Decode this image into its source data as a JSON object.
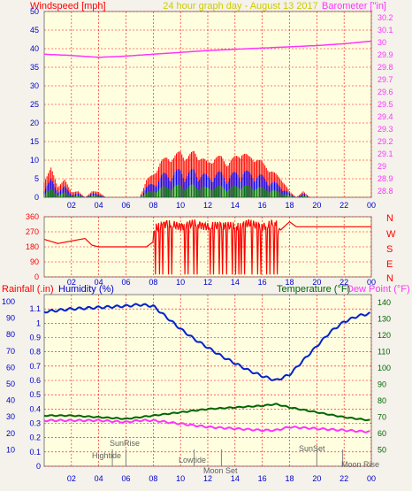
{
  "header": {
    "left_title": "Windspeed [mph]",
    "center_title": "24 hour graph day - August 13 2017",
    "right_title": "Barometer [\"in]"
  },
  "wind_dir": {
    "compass": [
      "N",
      "W",
      "S",
      "E",
      "N"
    ]
  },
  "bottom_header": {
    "rain": "Rainfall (.in)",
    "humidity": "Humidity (%)",
    "temperature": "Temperature (°F)",
    "dewpoint": "Dew Point (°F)"
  },
  "events": {
    "hightide": "Hightide",
    "sunrise": "SunRise",
    "lowtide": "Lowtide",
    "moonset": "Moon Set",
    "sunset": "SunSet",
    "moonrise": "Moon Rise"
  },
  "colors": {
    "background": "#f4f2ea",
    "plot_bg": "#ffffe0",
    "grid": "#ff0000",
    "barometer": "#ff33ff",
    "wind_gust": "#ff0000",
    "wind_avg": "#0000ff",
    "wind_low": "#008000",
    "direction": "#ff0000",
    "humidity": "#0022cc",
    "temperature": "#006600",
    "dewpoint": "#ff33ff",
    "title": "#cccc00"
  },
  "chart_data": [
    {
      "type": "line",
      "title": "24 hour graph day - August 13 2017",
      "x_ticks": [
        "02",
        "04",
        "06",
        "08",
        "10",
        "12",
        "14",
        "16",
        "18",
        "20",
        "22",
        "00"
      ],
      "y_left_ticks": [
        0,
        5,
        10,
        15,
        20,
        25,
        30,
        35,
        40,
        45,
        50
      ],
      "y_right_ticks": [
        "28.8",
        "28.9",
        "29",
        "29.1",
        "29.2",
        "29.3",
        "29.4",
        "29.5",
        "29.6",
        "29.7",
        "29.8",
        "29.9",
        "30",
        "30.1",
        "30.2"
      ],
      "ylim_left": [
        0,
        50
      ],
      "ylim_right": [
        28.75,
        30.25
      ],
      "series": [
        {
          "name": "Barometer",
          "axis": "right",
          "hours": [
            0,
            2,
            4,
            6,
            8,
            10,
            12,
            14,
            16,
            18,
            20,
            22,
            24
          ],
          "values": [
            29.905,
            29.895,
            29.88,
            29.89,
            29.905,
            29.92,
            29.935,
            29.945,
            29.955,
            29.965,
            29.975,
            29.99,
            30.01
          ]
        },
        {
          "name": "Windspeed",
          "axis": "left",
          "hours": [
            0,
            0.5,
            1,
            1.5,
            2,
            2.5,
            3,
            3.5,
            4,
            4.5,
            5,
            5.5,
            6,
            6.5,
            7,
            7.5,
            8,
            8.5,
            9,
            9.5,
            10,
            10.5,
            11,
            11.5,
            12,
            12.5,
            13,
            13.5,
            14,
            14.5,
            15,
            15.5,
            16,
            16.5,
            17,
            17.5,
            18,
            18.5,
            19,
            19.5,
            20
          ],
          "values": [
            3,
            5,
            2,
            3,
            1,
            1,
            0,
            1,
            1,
            0,
            0,
            0,
            0,
            0,
            0,
            3,
            4,
            6,
            7,
            7,
            8,
            7,
            8,
            7,
            6,
            7,
            7,
            6,
            7,
            8,
            7,
            7,
            6,
            5,
            4,
            3,
            1,
            0,
            1,
            0,
            0
          ]
        }
      ]
    },
    {
      "type": "line",
      "y_ticks": [
        0,
        90,
        180,
        270,
        360
      ],
      "ylim": [
        0,
        360
      ],
      "direction_hours": [
        0,
        1,
        2,
        3,
        3.5,
        4,
        5,
        6,
        6.5,
        7,
        7.5,
        8,
        8.1,
        9,
        10,
        11,
        12,
        13,
        14,
        15,
        16,
        16.5,
        17,
        17.2,
        18,
        18.5,
        20,
        22,
        24
      ],
      "direction_values": [
        225,
        200,
        215,
        230,
        190,
        180,
        180,
        180,
        180,
        180,
        180,
        210,
        290,
        320,
        300,
        320,
        300,
        310,
        300,
        320,
        300,
        310,
        330,
        270,
        330,
        300,
        300,
        300,
        300
      ]
    },
    {
      "type": "line",
      "y_left_ticks": [
        0,
        0.1,
        0.2,
        0.3,
        0.4,
        0.5,
        0.6,
        0.7,
        0.8,
        0.9,
        1,
        1.1
      ],
      "y_left_outer_ticks": [
        10,
        20,
        30,
        40,
        50,
        60,
        70,
        80,
        90,
        100
      ],
      "y_right_ticks": [
        50,
        60,
        70,
        80,
        90,
        100,
        110,
        120,
        130,
        140
      ],
      "ylim_left": [
        0,
        1.2
      ],
      "ylim_right": [
        40,
        145
      ],
      "series": [
        {
          "name": "Humidity",
          "axis": "left",
          "hours": [
            0,
            2,
            4,
            6,
            7,
            8,
            9,
            10,
            11,
            12,
            13,
            14,
            15,
            16,
            17,
            18,
            19,
            20,
            21,
            22,
            23,
            24
          ],
          "values": [
            1.08,
            1.1,
            1.11,
            1.12,
            1.13,
            1.12,
            1.04,
            0.96,
            0.89,
            0.83,
            0.77,
            0.72,
            0.67,
            0.63,
            0.6,
            0.64,
            0.74,
            0.84,
            0.94,
            1.01,
            1.05,
            1.07
          ]
        },
        {
          "name": "Temperature",
          "axis": "right",
          "hours": [
            0,
            2,
            4,
            6,
            7,
            8,
            10,
            12,
            14,
            16,
            17,
            18,
            20,
            22,
            24
          ],
          "values": [
            71,
            71,
            70,
            69,
            70,
            71,
            73,
            75,
            76,
            77,
            78,
            76,
            73,
            70,
            68
          ]
        },
        {
          "name": "Dew Point",
          "axis": "right",
          "hours": [
            0,
            2,
            4,
            6,
            7,
            8,
            10,
            12,
            14,
            16,
            17,
            18,
            20,
            22,
            24
          ],
          "values": [
            68,
            68,
            68,
            67,
            68,
            68,
            66,
            64,
            63,
            62,
            62,
            64,
            63,
            62,
            61
          ]
        }
      ]
    }
  ]
}
